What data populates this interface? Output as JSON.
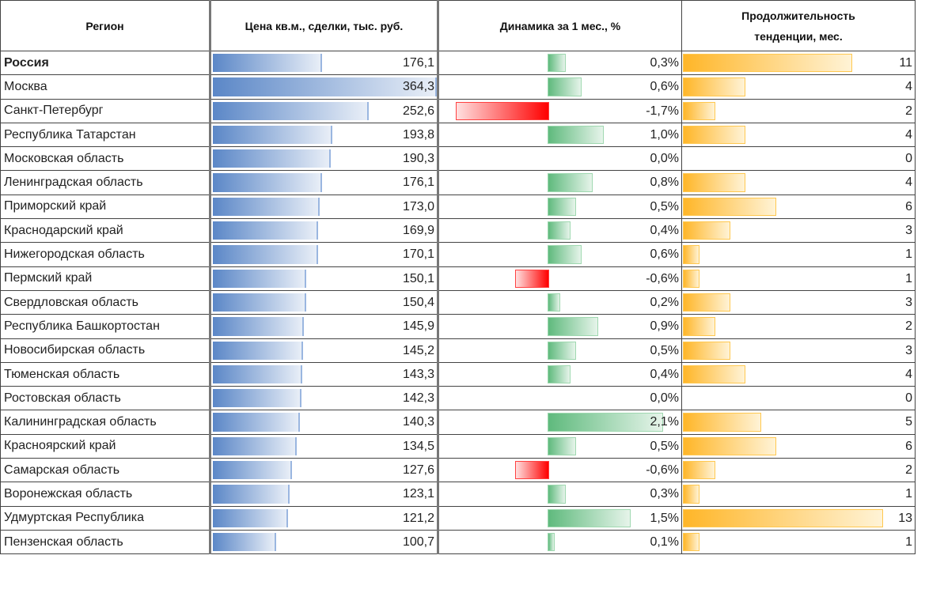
{
  "chart_data": {
    "type": "table",
    "columns": [
      "Регион",
      "Цена кв.м., сделки, тыс. руб.",
      "Динамика за 1 мес., %",
      "Продолжительность тенденции, мес."
    ],
    "header_line2": "тенденции, мес.",
    "header_line1": "Продолжительность",
    "colors": {
      "price": "#5b87c7",
      "positive": "#5fba7d",
      "negative": "#ff0000",
      "duration": "#ffb628"
    },
    "rows": [
      {
        "region": "Россия",
        "price": 176.1,
        "price_text": "176,1",
        "dyn": 0.3,
        "dyn_text": "0,3%",
        "dur": 11,
        "dur_text": "11",
        "bold": true
      },
      {
        "region": "Москва",
        "price": 364.3,
        "price_text": "364,3",
        "dyn": 0.6,
        "dyn_text": "0,6%",
        "dur": 4,
        "dur_text": "4"
      },
      {
        "region": "Санкт-Петербург",
        "price": 252.6,
        "price_text": "252,6",
        "dyn": -1.7,
        "dyn_text": "-1,7%",
        "dur": 2,
        "dur_text": "2"
      },
      {
        "region": "Республика Татарстан",
        "price": 193.8,
        "price_text": "193,8",
        "dyn": 1.0,
        "dyn_text": "1,0%",
        "dur": 4,
        "dur_text": "4"
      },
      {
        "region": "Московская область",
        "price": 190.3,
        "price_text": "190,3",
        "dyn": 0.0,
        "dyn_text": "0,0%",
        "dur": 0,
        "dur_text": "0"
      },
      {
        "region": "Ленинградская область",
        "price": 176.1,
        "price_text": "176,1",
        "dyn": 0.8,
        "dyn_text": "0,8%",
        "dur": 4,
        "dur_text": "4"
      },
      {
        "region": "Приморский край",
        "price": 173.0,
        "price_text": "173,0",
        "dyn": 0.5,
        "dyn_text": "0,5%",
        "dur": 6,
        "dur_text": "6"
      },
      {
        "region": "Краснодарский край",
        "price": 169.9,
        "price_text": "169,9",
        "dyn": 0.4,
        "dyn_text": "0,4%",
        "dur": 3,
        "dur_text": "3"
      },
      {
        "region": "Нижегородская область",
        "price": 170.1,
        "price_text": "170,1",
        "dyn": 0.6,
        "dyn_text": "0,6%",
        "dur": 1,
        "dur_text": "1"
      },
      {
        "region": "Пермский край",
        "price": 150.1,
        "price_text": "150,1",
        "dyn": -0.6,
        "dyn_text": "-0,6%",
        "dur": 1,
        "dur_text": "1"
      },
      {
        "region": "Свердловская область",
        "price": 150.4,
        "price_text": "150,4",
        "dyn": 0.2,
        "dyn_text": "0,2%",
        "dur": 3,
        "dur_text": "3"
      },
      {
        "region": "Республика Башкортостан",
        "price": 145.9,
        "price_text": "145,9",
        "dyn": 0.9,
        "dyn_text": "0,9%",
        "dur": 2,
        "dur_text": "2"
      },
      {
        "region": "Новосибирская область",
        "price": 145.2,
        "price_text": "145,2",
        "dyn": 0.5,
        "dyn_text": "0,5%",
        "dur": 3,
        "dur_text": "3"
      },
      {
        "region": "Тюменская область",
        "price": 143.3,
        "price_text": "143,3",
        "dyn": 0.4,
        "dyn_text": "0,4%",
        "dur": 4,
        "dur_text": "4"
      },
      {
        "region": "Ростовская область",
        "price": 142.3,
        "price_text": "142,3",
        "dyn": 0.0,
        "dyn_text": "0,0%",
        "dur": 0,
        "dur_text": "0"
      },
      {
        "region": "Калининградская область",
        "price": 140.3,
        "price_text": "140,3",
        "dyn": 2.1,
        "dyn_text": "2,1%",
        "dur": 5,
        "dur_text": "5"
      },
      {
        "region": "Красноярский край",
        "price": 134.5,
        "price_text": "134,5",
        "dyn": 0.5,
        "dyn_text": "0,5%",
        "dur": 6,
        "dur_text": "6"
      },
      {
        "region": "Самарская область",
        "price": 127.6,
        "price_text": "127,6",
        "dyn": -0.6,
        "dyn_text": "-0,6%",
        "dur": 2,
        "dur_text": "2"
      },
      {
        "region": "Воронежская область",
        "price": 123.1,
        "price_text": "123,1",
        "dyn": 0.3,
        "dyn_text": "0,3%",
        "dur": 1,
        "dur_text": "1"
      },
      {
        "region": "Удмуртская Республика",
        "price": 121.2,
        "price_text": "121,2",
        "dyn": 1.5,
        "dyn_text": "1,5%",
        "dur": 13,
        "dur_text": "13"
      },
      {
        "region": "Пензенская область",
        "price": 100.7,
        "price_text": "100,7",
        "dyn": 0.1,
        "dyn_text": "0,1%",
        "dur": 1,
        "dur_text": "1"
      }
    ]
  }
}
